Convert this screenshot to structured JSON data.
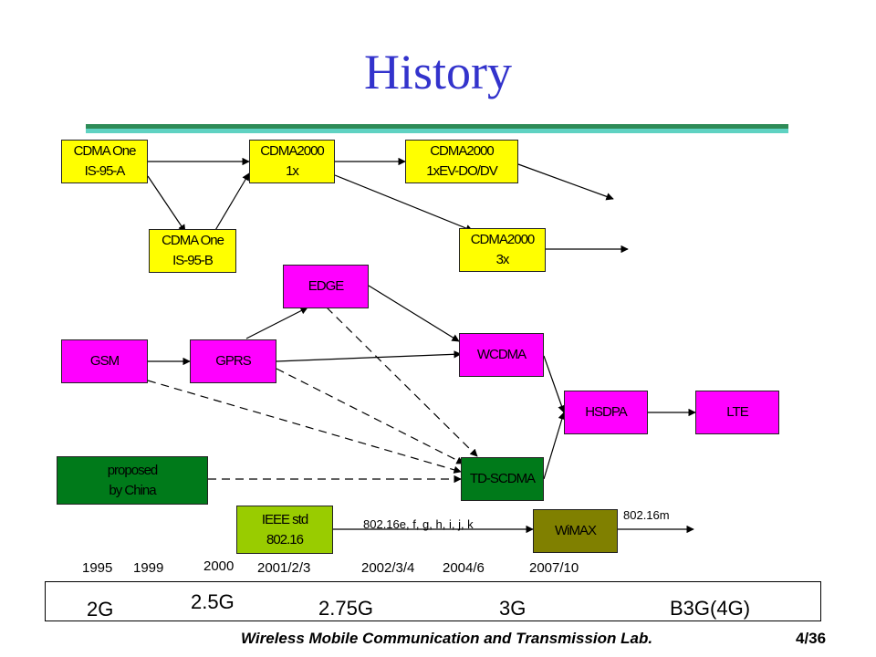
{
  "title": "History",
  "boxes": {
    "cdma_one_a": {
      "line1": "CDMA One",
      "line2": "IS-95-A"
    },
    "cdma2000_1x": {
      "line1": "CDMA2000",
      "line2": "1x"
    },
    "cdma2000_evdo": {
      "line1": "CDMA2000",
      "line2": "1xEV-DO/DV"
    },
    "cdma_one_b": {
      "line1": "CDMA One",
      "line2": "IS-95-B"
    },
    "cdma2000_3x": {
      "line1": "CDMA2000",
      "line2": "3x"
    },
    "edge": "EDGE",
    "gsm": "GSM",
    "gprs": "GPRS",
    "wcdma": "WCDMA",
    "hsdpa": "HSDPA",
    "lte": "LTE",
    "proposed": {
      "line1": "proposed",
      "line2": "by China"
    },
    "td_scdma": "TD-SCDMA",
    "ieee": {
      "line1": "IEEE std",
      "line2": "802.16"
    },
    "wimax": "WiMAX"
  },
  "labels": {
    "wimax_variants": "802.16e, f, g, h, i, j, k",
    "wimax_next": "802.16m"
  },
  "years": [
    "1995",
    "1999",
    "2000",
    "2001/2/3",
    "2002/3/4",
    "2004/6",
    "2007/10"
  ],
  "generations": [
    "2G",
    "2.5G",
    "2.75G",
    "3G",
    "B3G(4G)"
  ],
  "footer": {
    "lab": "Wireless Mobile Communication and Transmission Lab.",
    "page": "4/36"
  }
}
